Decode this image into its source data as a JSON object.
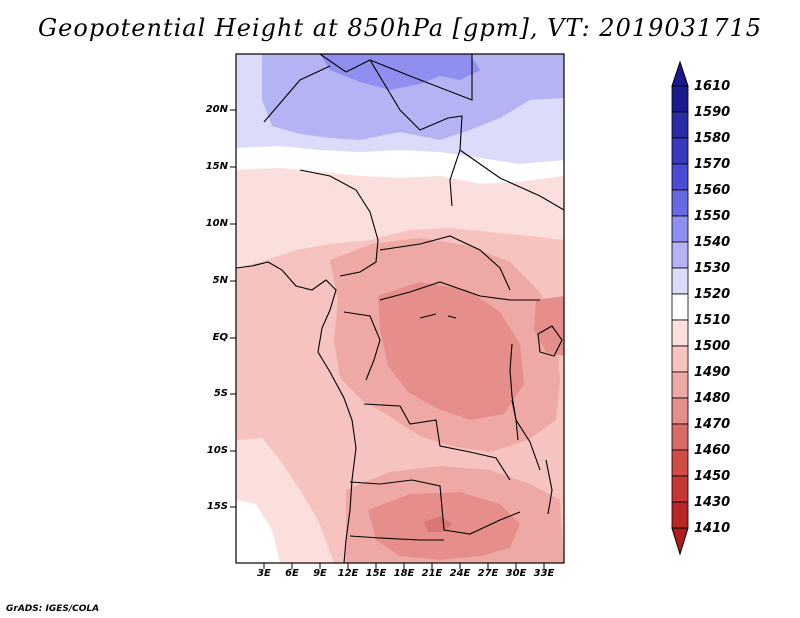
{
  "header": {
    "title": "Geopotential Height at 850hPa [gpm], VT: 2019031715"
  },
  "footer": {
    "credit": "GrADS: IGES/COLA"
  },
  "map": {
    "lat_labels": [
      "20N",
      "15N",
      "10N",
      "5N",
      "EQ",
      "5S",
      "10S",
      "15S"
    ],
    "lon_labels": [
      "3E",
      "6E",
      "9E",
      "12E",
      "15E",
      "18E",
      "21E",
      "24E",
      "27E",
      "30E",
      "33E"
    ]
  },
  "colorbar": {
    "levels": [
      "1610",
      "1590",
      "1580",
      "1570",
      "1560",
      "1550",
      "1540",
      "1530",
      "1520",
      "1510",
      "1500",
      "1490",
      "1480",
      "1470",
      "1460",
      "1450",
      "1430",
      "1410"
    ],
    "colors": {
      "blue_dark": "#1a1a8c",
      "blue_mid": "#4b4bd6",
      "blue_light": "#b4b4f5",
      "blue_pale": "#dcdcfa",
      "white": "#ffffff",
      "pink_pale": "#fbdfdd",
      "pink_light": "#f6c3c0",
      "pink_mid": "#eea9a6",
      "red_light": "#e58e8b",
      "red_dark": "#b01c1c"
    }
  }
}
